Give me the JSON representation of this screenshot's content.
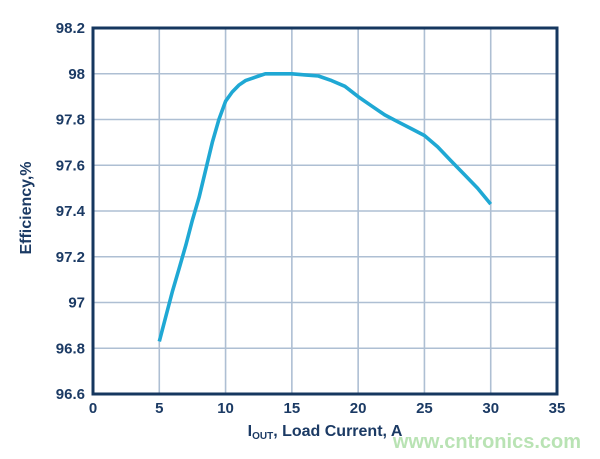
{
  "colors": {
    "axis_frame": "#16375f",
    "grid": "#aebfd3",
    "curve": "#1fa8d4",
    "text": "#1b3a64",
    "watermark": "#b9e3b4",
    "background": "#ffffff"
  },
  "watermark": {
    "text": "www.cntronics.com"
  },
  "chart_data": {
    "type": "line",
    "title": "",
    "xlabel": "IOUT, Load Current, A",
    "xlabel_parts": {
      "symbol": "I",
      "subscript": "OUT",
      "rest": ", Load Current, A"
    },
    "ylabel": "Efficiency,%",
    "xlim": [
      0,
      35
    ],
    "ylim": [
      96.6,
      98.2
    ],
    "x_ticks": [
      0,
      5,
      10,
      15,
      20,
      25,
      30,
      35
    ],
    "y_ticks": [
      96.6,
      96.8,
      97,
      97.2,
      97.4,
      97.6,
      97.8,
      98,
      98.2
    ],
    "grid": true,
    "legend": "none",
    "series": [
      {
        "name": "efficiency",
        "color": "#1fa8d4",
        "points": [
          [
            5,
            96.83
          ],
          [
            5.5,
            96.94
          ],
          [
            6,
            97.05
          ],
          [
            6.5,
            97.15
          ],
          [
            7,
            97.25
          ],
          [
            7.5,
            97.36
          ],
          [
            8,
            97.46
          ],
          [
            8.5,
            97.58
          ],
          [
            9,
            97.7
          ],
          [
            9.5,
            97.8
          ],
          [
            10,
            97.88
          ],
          [
            10.5,
            97.92
          ],
          [
            11,
            97.95
          ],
          [
            11.5,
            97.97
          ],
          [
            12,
            97.98
          ],
          [
            12.5,
            97.99
          ],
          [
            13,
            98.0
          ],
          [
            14,
            98.0
          ],
          [
            15,
            98.0
          ],
          [
            16,
            97.995
          ],
          [
            17,
            97.99
          ],
          [
            18,
            97.97
          ],
          [
            19,
            97.945
          ],
          [
            20,
            97.9
          ],
          [
            21,
            97.86
          ],
          [
            22,
            97.82
          ],
          [
            23,
            97.79
          ],
          [
            24,
            97.76
          ],
          [
            25,
            97.73
          ],
          [
            26,
            97.68
          ],
          [
            27,
            97.62
          ],
          [
            28,
            97.56
          ],
          [
            29,
            97.5
          ],
          [
            30,
            97.43
          ]
        ]
      }
    ]
  }
}
